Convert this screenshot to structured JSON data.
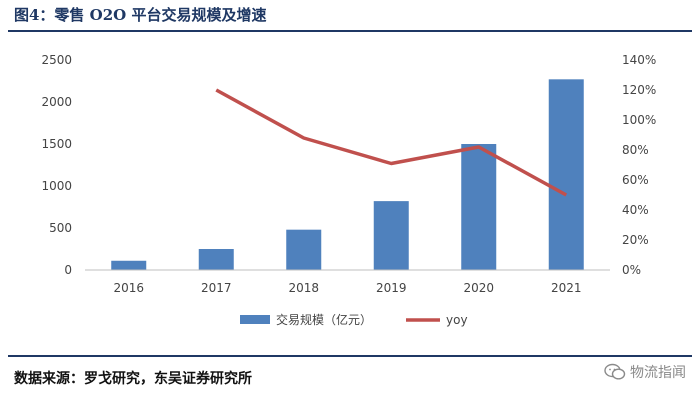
{
  "header": {
    "title": "图4：零售 O2O 平台交易规模及增速"
  },
  "footer": {
    "source": "数据来源：罗戈研究，东吴证券研究所",
    "watermark": "物流指闻"
  },
  "colors": {
    "bar": "#4f81bd",
    "line": "#c0504d",
    "title": "#1f3864"
  },
  "chart_data": {
    "type": "bar",
    "title": "",
    "categories": [
      "2016",
      "2017",
      "2018",
      "2019",
      "2020",
      "2021"
    ],
    "series": [
      {
        "name": "交易规模（亿元）",
        "type": "bar",
        "axis": "left",
        "values": [
          110,
          250,
          480,
          820,
          1500,
          2270
        ]
      },
      {
        "name": "yoy",
        "type": "line",
        "axis": "right",
        "values": [
          null,
          1.2,
          0.88,
          0.71,
          0.82,
          0.5
        ]
      }
    ],
    "y_left": {
      "range": [
        0,
        2500
      ],
      "ticks": [
        "0",
        "500",
        "1000",
        "1500",
        "2000",
        "2500"
      ]
    },
    "y_right": {
      "range": [
        0,
        1.4
      ],
      "ticks": [
        "0%",
        "20%",
        "40%",
        "60%",
        "80%",
        "100%",
        "120%",
        "140%"
      ]
    },
    "grid": false,
    "legend": "bottom"
  }
}
